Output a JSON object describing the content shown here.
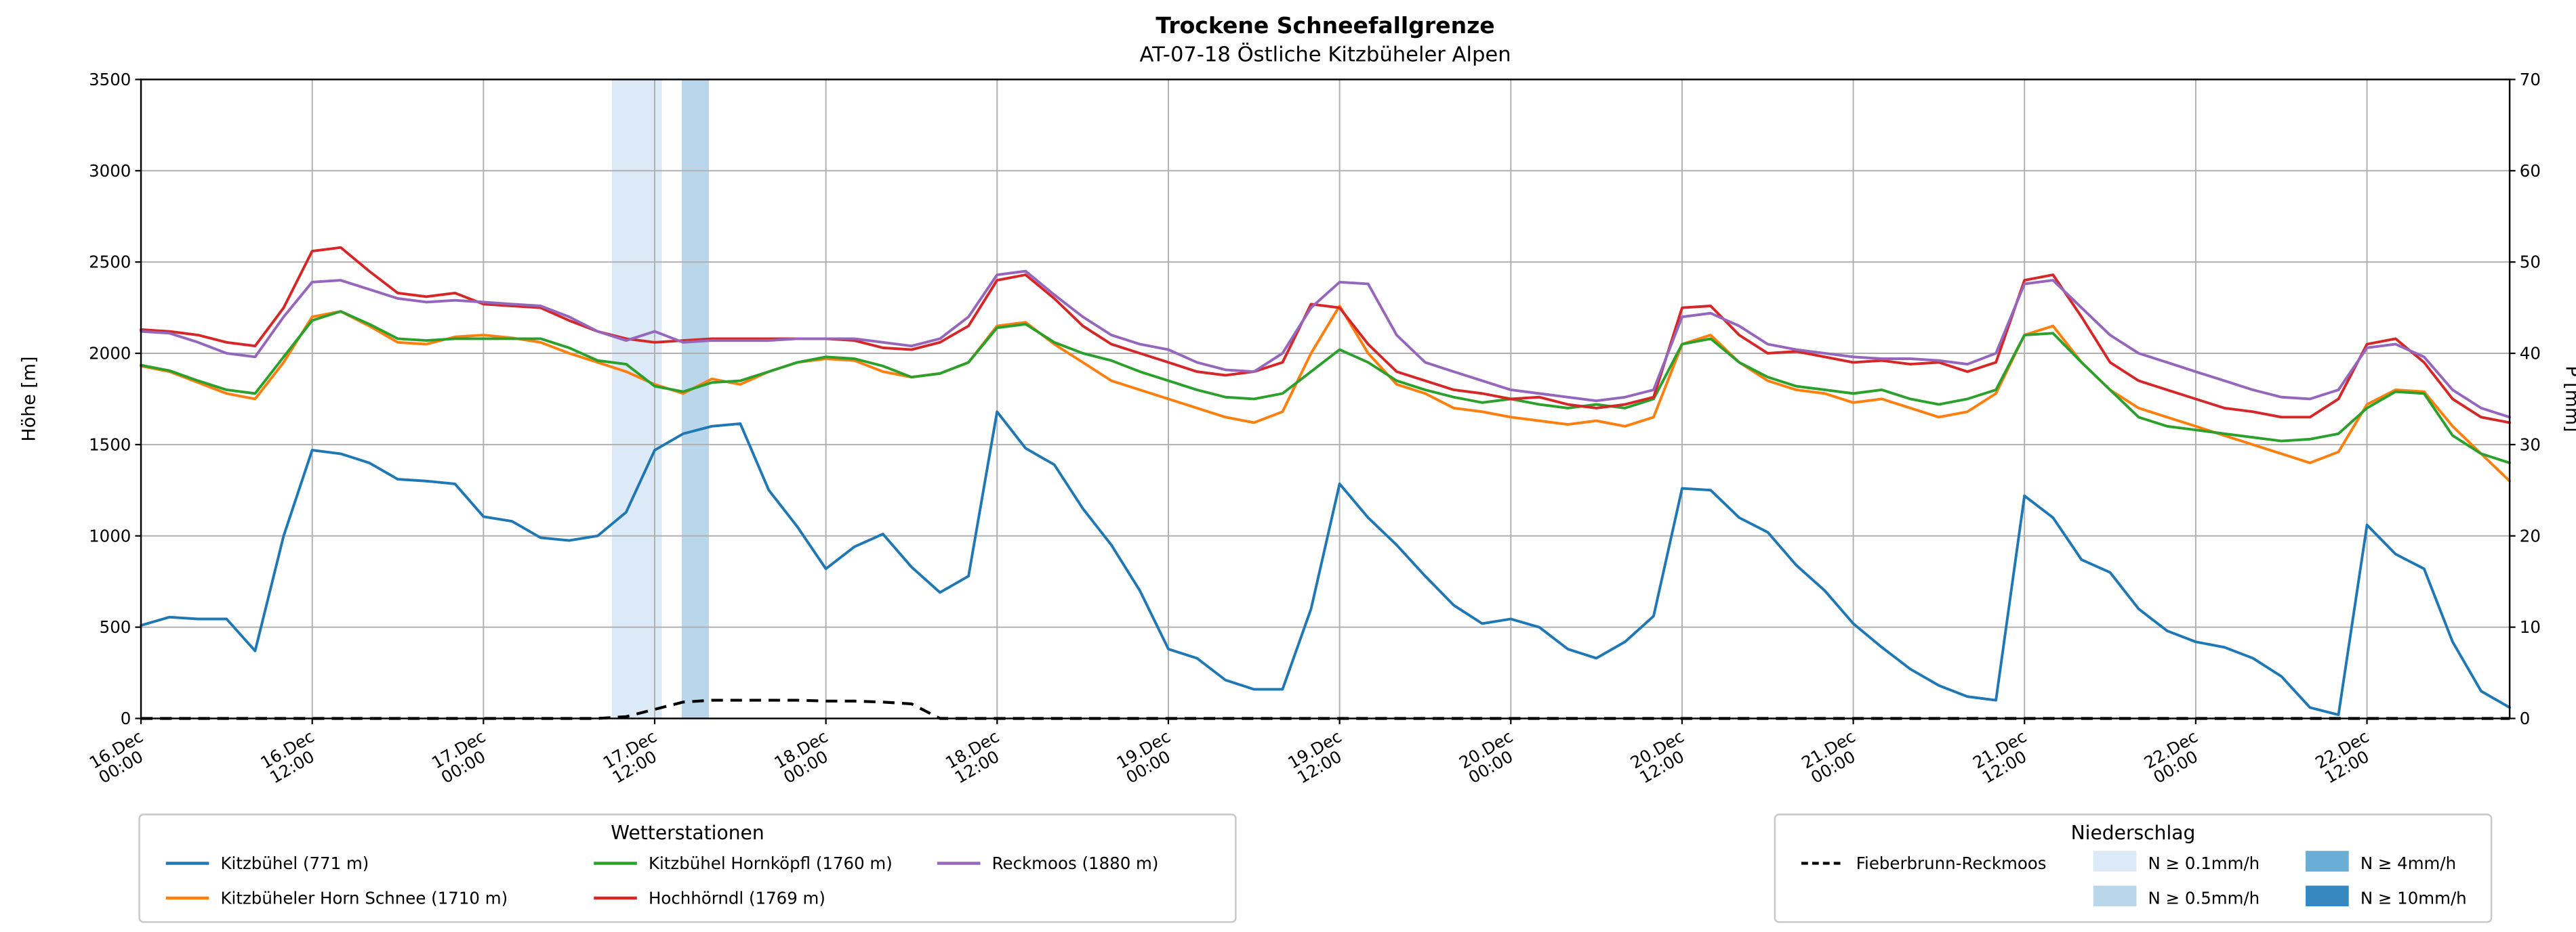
{
  "chart": {
    "title": "Trockene Schneefallgrenze",
    "subtitle": "AT-07-18 Östliche Kitzbüheler Alpen",
    "ylabel_left": "Höhe [m]",
    "ylabel_right": "P [mm]",
    "legend_stations_title": "Wetterstationen",
    "legend_precip_title": "Niederschlag"
  },
  "chart_data": {
    "type": "line",
    "x_unit": "hours since 16.Dec 00:00",
    "x_step": 2,
    "x_range": [
      0,
      166
    ],
    "ylim_left": [
      0,
      3500
    ],
    "ylim_right": [
      0,
      70
    ],
    "yticks_left": [
      0,
      500,
      1000,
      1500,
      2000,
      2500,
      3000,
      3500
    ],
    "yticks_right": [
      0,
      10,
      20,
      30,
      40,
      50,
      60,
      70
    ],
    "grid": true,
    "xticks": [
      {
        "t": 0,
        "date": "16.Dec",
        "time": "00:00"
      },
      {
        "t": 12,
        "date": "16.Dec",
        "time": "12:00"
      },
      {
        "t": 24,
        "date": "17.Dec",
        "time": "00:00"
      },
      {
        "t": 36,
        "date": "17.Dec",
        "time": "12:00"
      },
      {
        "t": 48,
        "date": "18.Dec",
        "time": "00:00"
      },
      {
        "t": 60,
        "date": "18.Dec",
        "time": "12:00"
      },
      {
        "t": 72,
        "date": "19.Dec",
        "time": "00:00"
      },
      {
        "t": 84,
        "date": "19.Dec",
        "time": "12:00"
      },
      {
        "t": 96,
        "date": "20.Dec",
        "time": "00:00"
      },
      {
        "t": 108,
        "date": "20.Dec",
        "time": "12:00"
      },
      {
        "t": 120,
        "date": "21.Dec",
        "time": "00:00"
      },
      {
        "t": 132,
        "date": "21.Dec",
        "time": "12:00"
      },
      {
        "t": 144,
        "date": "22.Dec",
        "time": "00:00"
      },
      {
        "t": 156,
        "date": "22.Dec",
        "time": "12:00"
      }
    ],
    "series": [
      {
        "name": "Kitzbühel (771 m)",
        "color": "#1f77b4",
        "values": [
          510,
          555,
          545,
          545,
          370,
          1000,
          1470,
          1450,
          1400,
          1310,
          1300,
          1285,
          1105,
          1080,
          990,
          975,
          1000,
          1130,
          1470,
          1560,
          1600,
          1615,
          1250,
          1050,
          820,
          940,
          1010,
          830,
          690,
          780,
          1680,
          1480,
          1390,
          1150,
          950,
          700,
          380,
          330,
          210,
          160,
          160,
          600,
          1285,
          1100,
          950,
          780,
          620,
          520,
          545,
          500,
          380,
          330,
          420,
          560,
          1260,
          1250,
          1100,
          1020,
          840,
          700,
          520,
          390,
          270,
          180,
          120,
          100,
          1220,
          1100,
          870,
          800,
          600,
          480,
          420,
          390,
          330,
          230,
          60,
          20,
          1060,
          900,
          820,
          420,
          150,
          60
        ]
      },
      {
        "name": "Kitzbüheler Horn Schnee (1710 m)",
        "color": "#ff7f0e",
        "values": [
          1930,
          1900,
          1840,
          1780,
          1750,
          1950,
          2200,
          2230,
          2150,
          2060,
          2050,
          2090,
          2100,
          2085,
          2060,
          2000,
          1950,
          1900,
          1830,
          1780,
          1860,
          1830,
          1900,
          1950,
          1970,
          1960,
          1900,
          1870,
          1890,
          1950,
          2150,
          2170,
          2050,
          1950,
          1850,
          1800,
          1750,
          1700,
          1650,
          1620,
          1680,
          2000,
          2260,
          2000,
          1830,
          1780,
          1700,
          1680,
          1650,
          1630,
          1610,
          1630,
          1600,
          1650,
          2050,
          2100,
          1950,
          1850,
          1800,
          1780,
          1730,
          1750,
          1700,
          1650,
          1680,
          1780,
          2100,
          2150,
          1950,
          1800,
          1700,
          1650,
          1600,
          1550,
          1500,
          1450,
          1400,
          1460,
          1720,
          1800,
          1790,
          1600,
          1450,
          1300
        ]
      },
      {
        "name": "Kitzbühel Hornköpfl (1760 m)",
        "color": "#2ca02c",
        "values": [
          1935,
          1905,
          1850,
          1800,
          1780,
          1980,
          2180,
          2230,
          2160,
          2080,
          2070,
          2080,
          2080,
          2080,
          2080,
          2030,
          1960,
          1940,
          1820,
          1790,
          1840,
          1850,
          1900,
          1950,
          1980,
          1970,
          1930,
          1870,
          1890,
          1950,
          2140,
          2160,
          2060,
          2000,
          1960,
          1900,
          1850,
          1800,
          1760,
          1750,
          1780,
          1900,
          2020,
          1950,
          1850,
          1800,
          1760,
          1730,
          1750,
          1720,
          1700,
          1720,
          1700,
          1750,
          2050,
          2080,
          1950,
          1870,
          1820,
          1800,
          1780,
          1800,
          1750,
          1720,
          1750,
          1800,
          2100,
          2110,
          1950,
          1800,
          1650,
          1600,
          1580,
          1560,
          1540,
          1520,
          1530,
          1560,
          1700,
          1790,
          1780,
          1550,
          1450,
          1400
        ]
      },
      {
        "name": "Hochhörndl (1769 m)",
        "color": "#d62728",
        "values": [
          2130,
          2120,
          2100,
          2060,
          2040,
          2250,
          2560,
          2580,
          2450,
          2330,
          2310,
          2330,
          2270,
          2260,
          2250,
          2180,
          2120,
          2080,
          2060,
          2070,
          2080,
          2080,
          2080,
          2080,
          2080,
          2070,
          2030,
          2020,
          2060,
          2150,
          2400,
          2430,
          2300,
          2150,
          2050,
          2000,
          1950,
          1900,
          1880,
          1900,
          1950,
          2270,
          2250,
          2050,
          1900,
          1850,
          1800,
          1780,
          1750,
          1760,
          1720,
          1700,
          1720,
          1760,
          2250,
          2260,
          2100,
          2000,
          2010,
          1980,
          1950,
          1960,
          1940,
          1950,
          1900,
          1950,
          2400,
          2430,
          2200,
          1950,
          1850,
          1800,
          1750,
          1700,
          1680,
          1650,
          1650,
          1750,
          2050,
          2080,
          1950,
          1750,
          1650,
          1620
        ]
      },
      {
        "name": "Reckmoos (1880 m)",
        "color": "#9467bd",
        "values": [
          2120,
          2110,
          2060,
          2000,
          1980,
          2200,
          2390,
          2400,
          2350,
          2300,
          2280,
          2290,
          2280,
          2270,
          2260,
          2200,
          2120,
          2070,
          2120,
          2060,
          2070,
          2070,
          2070,
          2080,
          2080,
          2080,
          2060,
          2040,
          2080,
          2200,
          2430,
          2450,
          2320,
          2200,
          2100,
          2050,
          2020,
          1950,
          1910,
          1900,
          2000,
          2250,
          2390,
          2380,
          2100,
          1950,
          1900,
          1850,
          1800,
          1780,
          1760,
          1740,
          1760,
          1800,
          2200,
          2220,
          2150,
          2050,
          2020,
          2000,
          1980,
          1970,
          1970,
          1960,
          1940,
          2000,
          2380,
          2400,
          2250,
          2100,
          2000,
          1950,
          1900,
          1850,
          1800,
          1760,
          1750,
          1800,
          2030,
          2050,
          1980,
          1800,
          1700,
          1650
        ]
      }
    ],
    "precip_line": {
      "name": "Fieberbrunn-Reckmoos",
      "color": "#000000",
      "dashed": true,
      "unit": "mm",
      "values": [
        0,
        0,
        0,
        0,
        0,
        0,
        0,
        0,
        0,
        0,
        0,
        0,
        0,
        0,
        0,
        0,
        0,
        0.2,
        1.0,
        1.8,
        2.0,
        2.0,
        2.0,
        2.0,
        1.9,
        1.9,
        1.8,
        1.6,
        0,
        0,
        0,
        0,
        0,
        0,
        0,
        0,
        0,
        0,
        0,
        0,
        0,
        0,
        0,
        0,
        0,
        0,
        0,
        0,
        0,
        0,
        0,
        0,
        0,
        0,
        0,
        0,
        0,
        0,
        0,
        0,
        0,
        0,
        0,
        0,
        0,
        0,
        0,
        0,
        0,
        0,
        0,
        0,
        0,
        0,
        0,
        0,
        0,
        0,
        0,
        0,
        0,
        0,
        0,
        0
      ]
    },
    "precip_bands": [
      {
        "t_start": 33.0,
        "t_end": 36.5,
        "level": "N ≥ 0.1mm/h"
      },
      {
        "t_start": 37.9,
        "t_end": 39.8,
        "level": "N ≥ 0.5mm/h"
      }
    ],
    "band_levels": {
      "N ≥ 0.1mm/h": "#dce9f6",
      "N ≥ 0.5mm/h": "#bad6eb",
      "N ≥ 4mm/h": "#6aaed6",
      "N ≥ 10mm/h": "#3787c0"
    }
  },
  "legend_precip_items": [
    {
      "label": "N ≥ 0.1mm/h",
      "color": "#dce9f6"
    },
    {
      "label": "N ≥ 0.5mm/h",
      "color": "#bad6eb"
    },
    {
      "label": "N ≥ 4mm/h",
      "color": "#6aaed6"
    },
    {
      "label": "N ≥ 10mm/h",
      "color": "#3787c0"
    }
  ]
}
